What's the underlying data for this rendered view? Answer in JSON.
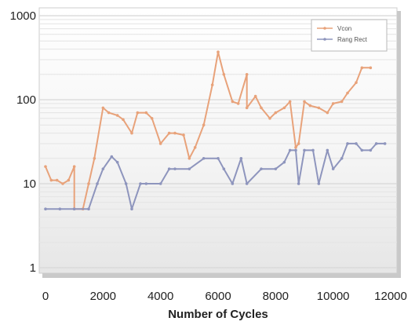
{
  "chart_data": {
    "type": "line",
    "title": "",
    "xlabel": "Number of Cycles",
    "ylabel": "",
    "xlim": [
      0,
      12000
    ],
    "ylim": [
      1,
      1000
    ],
    "y_scale": "log",
    "x_ticks": [
      0,
      2000,
      4000,
      6000,
      8000,
      10000,
      12000
    ],
    "y_ticks": [
      1,
      10,
      100,
      1000
    ],
    "x_tick_labels": [
      "0",
      "2000",
      "4000",
      "6000",
      "8000",
      "10000",
      "12000"
    ],
    "y_tick_labels": [
      "1",
      "10",
      "100",
      "1000"
    ],
    "grid": true,
    "legend_position": "top-right",
    "series": [
      {
        "name": "Vcon",
        "color": "#e8a27a",
        "points": [
          [
            0,
            16
          ],
          [
            200,
            11
          ],
          [
            400,
            11
          ],
          [
            600,
            10
          ],
          [
            800,
            11
          ],
          [
            1000,
            16
          ],
          [
            1000,
            5
          ],
          [
            1300,
            5
          ],
          [
            1500,
            10
          ],
          [
            1700,
            20
          ],
          [
            2000,
            80
          ],
          [
            2200,
            70
          ],
          [
            2500,
            65
          ],
          [
            2700,
            58
          ],
          [
            3000,
            40
          ],
          [
            3200,
            70
          ],
          [
            3500,
            70
          ],
          [
            3700,
            60
          ],
          [
            4000,
            30
          ],
          [
            4300,
            40
          ],
          [
            4500,
            40
          ],
          [
            4800,
            38
          ],
          [
            5000,
            20
          ],
          [
            5200,
            27
          ],
          [
            5500,
            50
          ],
          [
            5800,
            150
          ],
          [
            6000,
            370
          ],
          [
            6200,
            200
          ],
          [
            6500,
            95
          ],
          [
            6700,
            90
          ],
          [
            7000,
            200
          ],
          [
            7000,
            80
          ],
          [
            7300,
            110
          ],
          [
            7500,
            80
          ],
          [
            7800,
            60
          ],
          [
            8000,
            70
          ],
          [
            8300,
            80
          ],
          [
            8500,
            95
          ],
          [
            8700,
            27
          ],
          [
            8800,
            30
          ],
          [
            9000,
            95
          ],
          [
            9200,
            85
          ],
          [
            9500,
            80
          ],
          [
            9800,
            70
          ],
          [
            10000,
            90
          ],
          [
            10300,
            95
          ],
          [
            10500,
            120
          ],
          [
            10800,
            160
          ],
          [
            11000,
            240
          ],
          [
            11300,
            240
          ]
        ]
      },
      {
        "name": "Rang Rect",
        "color": "#8e95bd",
        "points": [
          [
            0,
            5
          ],
          [
            500,
            5
          ],
          [
            1000,
            5
          ],
          [
            1500,
            5
          ],
          [
            1800,
            10
          ],
          [
            2000,
            15
          ],
          [
            2300,
            21
          ],
          [
            2500,
            18
          ],
          [
            2800,
            10
          ],
          [
            3000,
            5
          ],
          [
            3300,
            10
          ],
          [
            3500,
            10
          ],
          [
            4000,
            10
          ],
          [
            4300,
            15
          ],
          [
            4500,
            15
          ],
          [
            5000,
            15
          ],
          [
            5500,
            20
          ],
          [
            6000,
            20
          ],
          [
            6200,
            15
          ],
          [
            6500,
            10
          ],
          [
            6800,
            20
          ],
          [
            7000,
            10
          ],
          [
            7500,
            15
          ],
          [
            8000,
            15
          ],
          [
            8300,
            18
          ],
          [
            8500,
            25
          ],
          [
            8700,
            25
          ],
          [
            8800,
            10
          ],
          [
            9000,
            25
          ],
          [
            9300,
            25
          ],
          [
            9500,
            10
          ],
          [
            9800,
            25
          ],
          [
            10000,
            15
          ],
          [
            10300,
            20
          ],
          [
            10500,
            30
          ],
          [
            10800,
            30
          ],
          [
            11000,
            25
          ],
          [
            11300,
            25
          ],
          [
            11500,
            30
          ],
          [
            11800,
            30
          ]
        ]
      }
    ]
  }
}
